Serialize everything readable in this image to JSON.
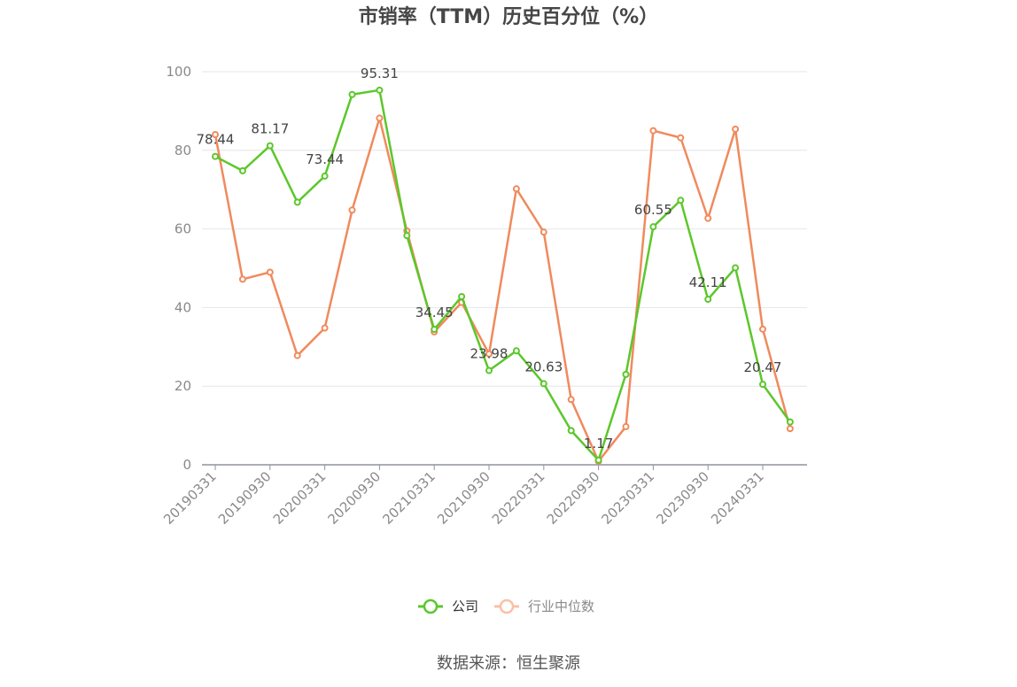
{
  "chart_data": {
    "type": "line",
    "title": "市销率（TTM）历史百分位（%）",
    "x": [
      "20190331",
      "20190630",
      "20190930",
      "20191231",
      "20200331",
      "20200630",
      "20200930",
      "20201231",
      "20210331",
      "20210630",
      "20210930",
      "20211231",
      "20220331",
      "20220630",
      "20220930",
      "20221231",
      "20230331",
      "20230630",
      "20230930",
      "20231231",
      "20240331",
      "20240630"
    ],
    "x_tick_labels": [
      "20190331",
      "20190930",
      "20200331",
      "20200930",
      "20210331",
      "20210930",
      "20220331",
      "20220930",
      "20230331",
      "20230930",
      "20240331"
    ],
    "ylim": [
      0,
      100
    ],
    "y_ticks": [
      0,
      20,
      40,
      60,
      80,
      100
    ],
    "grid": true,
    "legend_position": "bottom",
    "series": [
      {
        "name": "公司",
        "color": "#5cc72b",
        "values": [
          78.44,
          74.8,
          81.17,
          66.8,
          73.44,
          94.2,
          95.31,
          58.3,
          34.45,
          42.8,
          23.98,
          29.0,
          20.63,
          8.7,
          1.17,
          23.0,
          60.55,
          67.3,
          42.11,
          50.1,
          20.47,
          10.9
        ]
      },
      {
        "name": "行业中位数",
        "color": "#f08a5d",
        "legend_color": "#f8c1a8",
        "values": [
          84.0,
          47.2,
          49.0,
          27.8,
          34.8,
          64.8,
          88.2,
          59.5,
          33.8,
          41.3,
          28.2,
          70.2,
          59.2,
          16.6,
          0.9,
          9.7,
          85.0,
          83.2,
          62.7,
          85.4,
          34.5,
          9.2
        ]
      }
    ],
    "data_labels": [
      {
        "series": 0,
        "index": 0,
        "text": "78.44"
      },
      {
        "series": 0,
        "index": 2,
        "text": "81.17"
      },
      {
        "series": 0,
        "index": 4,
        "text": "73.44"
      },
      {
        "series": 0,
        "index": 6,
        "text": "95.31"
      },
      {
        "series": 0,
        "index": 8,
        "text": "34.45"
      },
      {
        "series": 0,
        "index": 10,
        "text": "23.98"
      },
      {
        "series": 0,
        "index": 12,
        "text": "20.63"
      },
      {
        "series": 0,
        "index": 14,
        "text": "1.17"
      },
      {
        "series": 0,
        "index": 16,
        "text": "60.55"
      },
      {
        "series": 0,
        "index": 18,
        "text": "42.11"
      },
      {
        "series": 0,
        "index": 20,
        "text": "20.47"
      }
    ]
  },
  "source_text": "数据来源：恒生聚源"
}
